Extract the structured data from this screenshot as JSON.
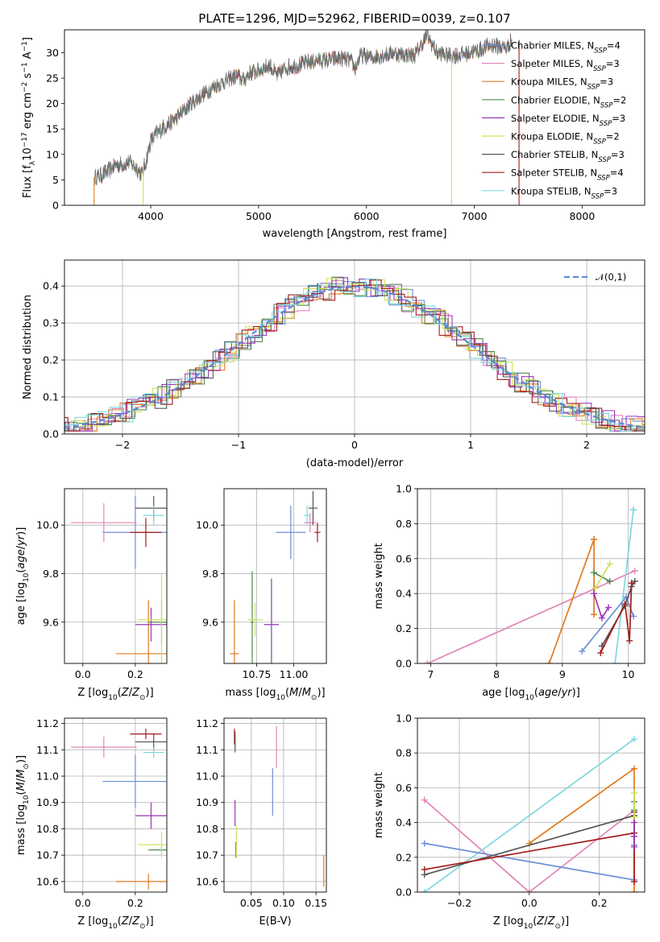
{
  "figure": {
    "title": "PLATE=1296, MJD=52962, FIBERID=0039, z=0.107"
  },
  "colors": {
    "Chabrier MILES": "#6b8fd6",
    "Salpeter MILES": "#e086b9",
    "Kroupa MILES": "#e07b1f",
    "Chabrier ELODIE": "#4f8a4f",
    "Salpeter ELODIE": "#9a36b8",
    "Kroupa ELODIE": "#cde35a",
    "Chabrier STELIB": "#555555",
    "Salpeter STELIB": "#a51c1c",
    "Kroupa STELIB": "#7dd8dd"
  },
  "chart_data": [
    {
      "id": "spectrum",
      "type": "line",
      "title": "PLATE=1296, MJD=52962, FIBERID=0039, z=0.107",
      "xlabel": "wavelength [Angstrom, rest frame]",
      "ylabel": "Flux [f_λ 10^-17 erg cm^-2 s^-1 A^-1]",
      "xlim": [
        3200,
        8580
      ],
      "ylim": [
        0,
        34.5
      ],
      "xticks": [
        4000,
        5000,
        6000,
        7000,
        8000
      ],
      "yticks": [
        0,
        5,
        10,
        15,
        20,
        25,
        30
      ],
      "grid": false,
      "legend_position": "right",
      "legend": [
        {
          "label": "Chabrier MILES, N",
          "sub": "SSP",
          "suffix": "=4",
          "model": "Chabrier MILES"
        },
        {
          "label": "Salpeter MILES, N",
          "sub": "SSP",
          "suffix": "=3",
          "model": "Salpeter MILES"
        },
        {
          "label": "Kroupa MILES, N",
          "sub": "SSP",
          "suffix": "=3",
          "model": "Kroupa MILES"
        },
        {
          "label": "Chabrier ELODIE, N",
          "sub": "SSP",
          "suffix": "=2",
          "model": "Chabrier ELODIE"
        },
        {
          "label": "Salpeter ELODIE, N",
          "sub": "SSP",
          "suffix": "=3",
          "model": "Salpeter ELODIE"
        },
        {
          "label": "Kroupa ELODIE, N",
          "sub": "SSP",
          "suffix": "=2",
          "model": "Kroupa ELODIE"
        },
        {
          "label": "Chabrier STELIB, N",
          "sub": "SSP",
          "suffix": "=3",
          "model": "Chabrier STELIB"
        },
        {
          "label": "Salpeter STELIB, N",
          "sub": "SSP",
          "suffix": "=4",
          "model": "Salpeter STELIB"
        },
        {
          "label": "Kroupa STELIB, N",
          "sub": "SSP",
          "suffix": "=3",
          "model": "Kroupa STELIB"
        }
      ],
      "spectrum_x": [
        3480,
        3550,
        3620,
        3680,
        3740,
        3800,
        3860,
        3920,
        3960,
        4000,
        4050,
        4100,
        4200,
        4300,
        4400,
        4500,
        4600,
        4700,
        4800,
        4860,
        4920,
        5000,
        5100,
        5175,
        5250,
        5350,
        5450,
        5550,
        5650,
        5750,
        5850,
        5893,
        5950,
        6050,
        6150,
        6250,
        6350,
        6450,
        6563,
        6650,
        6750,
        6850,
        6950,
        7050,
        7150,
        7300,
        7350
      ],
      "spectrum_y": [
        5.5,
        6.0,
        7.0,
        8.0,
        8.0,
        8.5,
        7.5,
        6.0,
        9.0,
        12.5,
        14.0,
        15.0,
        16.5,
        18.5,
        20.5,
        22.0,
        23.5,
        24.5,
        25.5,
        24.5,
        26.0,
        26.5,
        27.5,
        25.5,
        27.0,
        27.5,
        28.0,
        28.5,
        28.5,
        29.0,
        28.5,
        27.0,
        29.5,
        29.0,
        29.5,
        30.0,
        29.5,
        29.5,
        33.5,
        30.0,
        29.5,
        29.5,
        30.0,
        30.5,
        31.5,
        31.0,
        32.5
      ],
      "noise_amplitude": 1.6,
      "spikes": [
        {
          "model": "Kroupa MILES",
          "x": 3475
        },
        {
          "model": "Kroupa ELODIE",
          "x": 3930
        },
        {
          "model": "Kroupa ELODIE",
          "x": 6790
        },
        {
          "model": "Salpeter STELIB",
          "x": 7415
        }
      ]
    },
    {
      "id": "residuals",
      "type": "area",
      "xlabel": "(data-model)/error",
      "ylabel": "Normed distribution",
      "xlim": [
        -2.5,
        2.5
      ],
      "ylim": [
        0,
        0.47
      ],
      "xticks": [
        -2,
        -1,
        0,
        1,
        2
      ],
      "yticks": [
        0.0,
        0.1,
        0.2,
        0.3,
        0.4
      ],
      "grid": true,
      "legend_position": "top-right",
      "legend": [
        "𝒩(0,1)"
      ],
      "bin_width": 0.1,
      "series": [
        {
          "model": "Chabrier MILES",
          "offset": 0.0
        },
        {
          "model": "Salpeter MILES",
          "offset": 0.1
        },
        {
          "model": "Kroupa MILES",
          "offset": -0.2
        },
        {
          "model": "Chabrier ELODIE",
          "offset": 0.05
        },
        {
          "model": "Salpeter ELODIE",
          "offset": -0.6
        },
        {
          "model": "Kroupa ELODIE",
          "offset": -0.4
        },
        {
          "model": "Chabrier STELIB",
          "offset": -0.2
        },
        {
          "model": "Salpeter STELIB",
          "offset": 0.3
        },
        {
          "model": "Kroupa STELIB",
          "offset": -0.1
        }
      ]
    },
    {
      "id": "age_vs_Z",
      "type": "scatter",
      "xlabel": "Z [log10(Z/Z☉)]",
      "ylabel": "age [log10(age/yr)]",
      "xlim": [
        -0.07,
        0.32
      ],
      "ylim": [
        9.43,
        10.15
      ],
      "xticks": [
        0.0,
        0.2
      ],
      "yticks": [
        9.6,
        9.8,
        10.0
      ],
      "grid": true,
      "points": [
        {
          "model": "Chabrier MILES",
          "x": 0.2,
          "xerr": 0.125,
          "y": 9.97,
          "yerr": 0.15
        },
        {
          "model": "Salpeter MILES",
          "x": 0.08,
          "xerr": 0.125,
          "y": 10.01,
          "yerr": 0.08
        },
        {
          "model": "Kroupa MILES",
          "x": 0.25,
          "xerr": 0.125,
          "y": 9.47,
          "yerr": 0.22
        },
        {
          "model": "Chabrier ELODIE",
          "x": 0.3,
          "xerr": 0.05,
          "y": 9.6,
          "yerr": 0.09
        },
        {
          "model": "Salpeter ELODIE",
          "x": 0.26,
          "xerr": 0.06,
          "y": 9.59,
          "yerr": 0.07
        },
        {
          "model": "Kroupa ELODIE",
          "x": 0.3,
          "xerr": 0.09,
          "y": 9.61,
          "yerr": 0.19
        },
        {
          "model": "Chabrier STELIB",
          "x": 0.27,
          "xerr": 0.07,
          "y": 10.07,
          "yerr": 0.05
        },
        {
          "model": "Salpeter STELIB",
          "x": 0.24,
          "xerr": 0.06,
          "y": 9.97,
          "yerr": 0.06
        },
        {
          "model": "Kroupa STELIB",
          "x": 0.27,
          "xerr": 0.04,
          "y": 10.04,
          "yerr": 0.04
        }
      ]
    },
    {
      "id": "age_vs_mass",
      "type": "scatter",
      "xlabel": "mass [log10(M/M☉)]",
      "ylabel": "",
      "xlim": [
        10.53,
        11.22
      ],
      "ylim": [
        9.43,
        10.15
      ],
      "xticks": [
        10.75,
        11.0
      ],
      "yticks": [
        9.6,
        9.8,
        10.0
      ],
      "grid": true,
      "points": [
        {
          "model": "Chabrier MILES",
          "x": 10.98,
          "xerr": 0.1,
          "y": 9.97,
          "yerr": 0.11
        },
        {
          "model": "Salpeter MILES",
          "x": 11.11,
          "xerr": 0.04,
          "y": 10.01,
          "yerr": 0.04
        },
        {
          "model": "Kroupa MILES",
          "x": 10.6,
          "xerr": 0.03,
          "y": 9.47,
          "yerr": 0.22
        },
        {
          "model": "Chabrier ELODIE",
          "x": 10.72,
          "xerr": 0.01,
          "y": 9.6,
          "yerr": 0.21
        },
        {
          "model": "Salpeter ELODIE",
          "x": 10.85,
          "xerr": 0.05,
          "y": 9.59,
          "yerr": 0.19
        },
        {
          "model": "Kroupa ELODIE",
          "x": 10.74,
          "xerr": 0.05,
          "y": 9.61,
          "yerr": 0.07
        },
        {
          "model": "Chabrier STELIB",
          "x": 11.13,
          "xerr": 0.03,
          "y": 10.07,
          "yerr": 0.07
        },
        {
          "model": "Salpeter STELIB",
          "x": 11.16,
          "xerr": 0.02,
          "y": 9.97,
          "yerr": 0.04
        },
        {
          "model": "Kroupa STELIB",
          "x": 11.09,
          "xerr": 0.02,
          "y": 10.04,
          "yerr": 0.04
        }
      ]
    },
    {
      "id": "weight_vs_age",
      "type": "line",
      "xlabel": "age [log10(age/yr)]",
      "ylabel": "mass weight",
      "xlim": [
        6.8,
        10.25
      ],
      "ylim": [
        0,
        1.0
      ],
      "xticks": [
        7,
        8,
        9,
        10
      ],
      "yticks": [
        0.0,
        0.2,
        0.4,
        0.6,
        0.8,
        1.0
      ],
      "grid": true,
      "series": [
        {
          "model": "Salpeter MILES",
          "x": [
            6.95,
            10.1
          ],
          "y": [
            0.0,
            0.53
          ]
        },
        {
          "model": "Kroupa MILES",
          "x": [
            8.8,
            9.48,
            9.48,
            9.48
          ],
          "y": [
            0.0,
            0.71,
            0.28,
            0.71
          ]
        },
        {
          "model": "Kroupa STELIB",
          "x": [
            9.8,
            10.08,
            10.08
          ],
          "y": [
            0.0,
            0.88,
            0.88
          ]
        },
        {
          "model": "Chabrier MILES",
          "x": [
            9.3,
            9.97,
            10.08
          ],
          "y": [
            0.07,
            0.38,
            0.27
          ]
        },
        {
          "model": "Chabrier ELODIE",
          "x": [
            9.48,
            9.72
          ],
          "y": [
            0.52,
            0.47
          ]
        },
        {
          "model": "Kroupa ELODIE",
          "x": [
            9.5,
            9.72
          ],
          "y": [
            0.43,
            0.57
          ]
        },
        {
          "model": "Salpeter ELODIE",
          "x": [
            9.48,
            9.6,
            9.7
          ],
          "y": [
            0.4,
            0.26,
            0.32
          ]
        },
        {
          "model": "Chabrier STELIB",
          "x": [
            9.6,
            9.95,
            10.05,
            10.1
          ],
          "y": [
            0.1,
            0.33,
            0.44,
            0.47
          ]
        },
        {
          "model": "Salpeter STELIB",
          "x": [
            9.58,
            9.95,
            10.02,
            10.05
          ],
          "y": [
            0.06,
            0.34,
            0.13,
            0.46
          ]
        }
      ]
    },
    {
      "id": "mass_vs_Z",
      "type": "scatter",
      "xlabel": "Z [log10(Z/Z☉)]",
      "ylabel": "mass [log10(M/M☉)]",
      "xlim": [
        -0.07,
        0.32
      ],
      "ylim": [
        10.56,
        11.22
      ],
      "xticks": [
        0.0,
        0.2
      ],
      "yticks": [
        10.6,
        10.7,
        10.8,
        10.9,
        11.0,
        11.1,
        11.2
      ],
      "grid": true,
      "points": [
        {
          "model": "Chabrier MILES",
          "x": 0.2,
          "xerr": 0.125,
          "y": 10.98,
          "yerr": 0.1
        },
        {
          "model": "Salpeter MILES",
          "x": 0.08,
          "xerr": 0.125,
          "y": 11.11,
          "yerr": 0.04
        },
        {
          "model": "Kroupa MILES",
          "x": 0.25,
          "xerr": 0.125,
          "y": 10.6,
          "yerr": 0.03
        },
        {
          "model": "Chabrier ELODIE",
          "x": 0.3,
          "xerr": 0.05,
          "y": 10.72,
          "yerr": 0.01
        },
        {
          "model": "Salpeter ELODIE",
          "x": 0.26,
          "xerr": 0.06,
          "y": 10.85,
          "yerr": 0.05
        },
        {
          "model": "Kroupa ELODIE",
          "x": 0.3,
          "xerr": 0.09,
          "y": 10.74,
          "yerr": 0.05
        },
        {
          "model": "Chabrier STELIB",
          "x": 0.27,
          "xerr": 0.07,
          "y": 11.13,
          "yerr": 0.03
        },
        {
          "model": "Salpeter STELIB",
          "x": 0.24,
          "xerr": 0.06,
          "y": 11.16,
          "yerr": 0.02
        },
        {
          "model": "Kroupa STELIB",
          "x": 0.27,
          "xerr": 0.04,
          "y": 11.09,
          "yerr": 0.02
        }
      ]
    },
    {
      "id": "mass_vs_ebv",
      "type": "scatter",
      "xlabel": "E(B-V)",
      "ylabel": "",
      "xlim": [
        0.008,
        0.166
      ],
      "ylim": [
        10.56,
        11.22
      ],
      "xticks": [
        0.05,
        0.1,
        0.15
      ],
      "yticks": [
        10.6,
        10.7,
        10.8,
        10.9,
        11.0,
        11.1,
        11.2
      ],
      "grid": true,
      "points": [
        {
          "model": "Chabrier MILES",
          "x": 0.083,
          "xerr": 0,
          "y": 10.94,
          "yerr": 0.09
        },
        {
          "model": "Salpeter MILES",
          "x": 0.089,
          "xerr": 0,
          "y": 11.11,
          "yerr": 0.08
        },
        {
          "model": "Kroupa MILES",
          "x": 0.162,
          "xerr": 0,
          "y": 10.64,
          "yerr": 0.06
        },
        {
          "model": "Chabrier ELODIE",
          "x": 0.026,
          "xerr": 0,
          "y": 10.72,
          "yerr": 0.03
        },
        {
          "model": "Salpeter ELODIE",
          "x": 0.025,
          "xerr": 0,
          "y": 10.86,
          "yerr": 0.05
        },
        {
          "model": "Kroupa ELODIE",
          "x": 0.027,
          "xerr": 0,
          "y": 10.75,
          "yerr": 0.06
        },
        {
          "model": "Chabrier STELIB",
          "x": 0.025,
          "xerr": 0,
          "y": 11.13,
          "yerr": 0.04
        },
        {
          "model": "Salpeter STELIB",
          "x": 0.024,
          "xerr": 0,
          "y": 11.15,
          "yerr": 0.03
        },
        {
          "model": "Kroupa STELIB",
          "x": 0.026,
          "xerr": 0,
          "y": 11.13,
          "yerr": 0.02
        }
      ]
    },
    {
      "id": "weight_vs_Z",
      "type": "line",
      "xlabel": "Z [log10(Z/Z☉)]",
      "ylabel": "mass weight",
      "xlim": [
        -0.32,
        0.33
      ],
      "ylim": [
        0,
        1.0
      ],
      "xticks": [
        -0.2,
        0.0,
        0.2
      ],
      "yticks": [
        0.0,
        0.2,
        0.4,
        0.6,
        0.8,
        1.0
      ],
      "grid": true,
      "series": [
        {
          "model": "Salpeter MILES",
          "x": [
            -0.3,
            0.0,
            0.3
          ],
          "y": [
            0.53,
            0.0,
            0.47
          ]
        },
        {
          "model": "Kroupa STELIB",
          "x": [
            -0.3,
            0.3
          ],
          "y": [
            0.0,
            0.88
          ]
        },
        {
          "model": "Chabrier MILES",
          "x": [
            -0.3,
            0.3,
            0.3
          ],
          "y": [
            0.28,
            0.07,
            0.27
          ]
        },
        {
          "model": "Kroupa MILES",
          "x": [
            0.0,
            0.3,
            0.3
          ],
          "y": [
            0.28,
            0.71,
            0.0
          ]
        },
        {
          "model": "Chabrier STELIB",
          "x": [
            -0.3,
            0.3,
            0.3
          ],
          "y": [
            0.1,
            0.44,
            0.47
          ]
        },
        {
          "model": "Salpeter STELIB",
          "x": [
            -0.3,
            0.3,
            0.3,
            0.3
          ],
          "y": [
            0.13,
            0.34,
            0.46,
            0.06
          ]
        },
        {
          "model": "Chabrier ELODIE",
          "x": [
            0.3,
            0.3
          ],
          "y": [
            0.52,
            0.47
          ]
        },
        {
          "model": "Kroupa ELODIE",
          "x": [
            0.3,
            0.3
          ],
          "y": [
            0.43,
            0.57
          ]
        },
        {
          "model": "Salpeter ELODIE",
          "x": [
            0.3,
            0.3,
            0.3
          ],
          "y": [
            0.4,
            0.26,
            0.32
          ]
        }
      ]
    }
  ]
}
